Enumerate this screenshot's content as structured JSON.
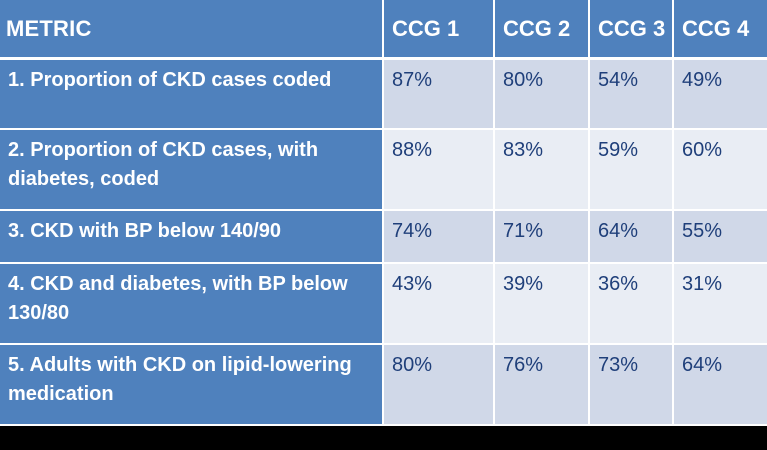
{
  "table": {
    "headers": [
      "METRIC",
      "CCG 1",
      "CCG 2",
      "CCG 3",
      "CCG 4"
    ],
    "rows": [
      {
        "metric": "1. Proportion of CKD cases coded",
        "values": [
          "87%",
          "80%",
          "54%",
          "49%"
        ]
      },
      {
        "metric": "2. Proportion of  CKD cases, with diabetes, coded",
        "values": [
          "88%",
          "83%",
          "59%",
          "60%"
        ]
      },
      {
        "metric": "3. CKD with BP below 140/90",
        "values": [
          "74%",
          "71%",
          "64%",
          "55%"
        ]
      },
      {
        "metric": "4. CKD and diabetes, with BP below 130/80",
        "values": [
          "43%",
          "39%",
          "36%",
          "31%"
        ]
      },
      {
        "metric": "5. Adults with CKD on lipid-lowering medication",
        "values": [
          "80%",
          "76%",
          "73%",
          "64%"
        ]
      }
    ]
  },
  "colors": {
    "header_bg": "#4f81bd",
    "header_text": "#ffffff",
    "row_band_dark": "#d0d8e8",
    "row_band_light": "#e9edf4",
    "value_text": "#1f3f7a",
    "page_bg": "#000000"
  }
}
